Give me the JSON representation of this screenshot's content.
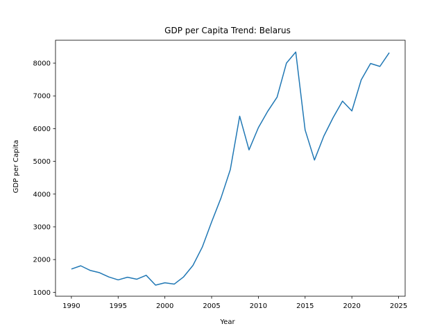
{
  "chart_data": {
    "type": "line",
    "title": "GDP per Capita Trend: Belarus",
    "xlabel": "Year",
    "ylabel": "GDP per Capita",
    "xlim": [
      1988.3,
      2025.7
    ],
    "ylim": [
      880,
      8700
    ],
    "x_ticks": [
      1990,
      1995,
      2000,
      2005,
      2010,
      2015,
      2020,
      2025
    ],
    "y_ticks": [
      1000,
      2000,
      3000,
      4000,
      5000,
      6000,
      7000,
      8000
    ],
    "grid": false,
    "line_color": "#1f77b4",
    "series": [
      {
        "x": [
          1990,
          1991,
          1992,
          1993,
          1994,
          1995,
          1996,
          1997,
          1998,
          1999,
          2000,
          2001,
          2002,
          2003,
          2004,
          2005,
          2006,
          2007,
          2008,
          2009,
          2010,
          2011,
          2012,
          2013,
          2014,
          2015,
          2016,
          2017,
          2018,
          2019,
          2020,
          2021,
          2022,
          2023,
          2024
        ],
        "values": [
          1710,
          1810,
          1670,
          1600,
          1470,
          1380,
          1460,
          1400,
          1520,
          1220,
          1290,
          1250,
          1470,
          1820,
          2380,
          3150,
          3880,
          4750,
          6380,
          5350,
          6030,
          6530,
          6960,
          8000,
          8340,
          5960,
          5040,
          5770,
          6340,
          6840,
          6540,
          7490,
          7990,
          7900,
          8320
        ]
      }
    ]
  }
}
